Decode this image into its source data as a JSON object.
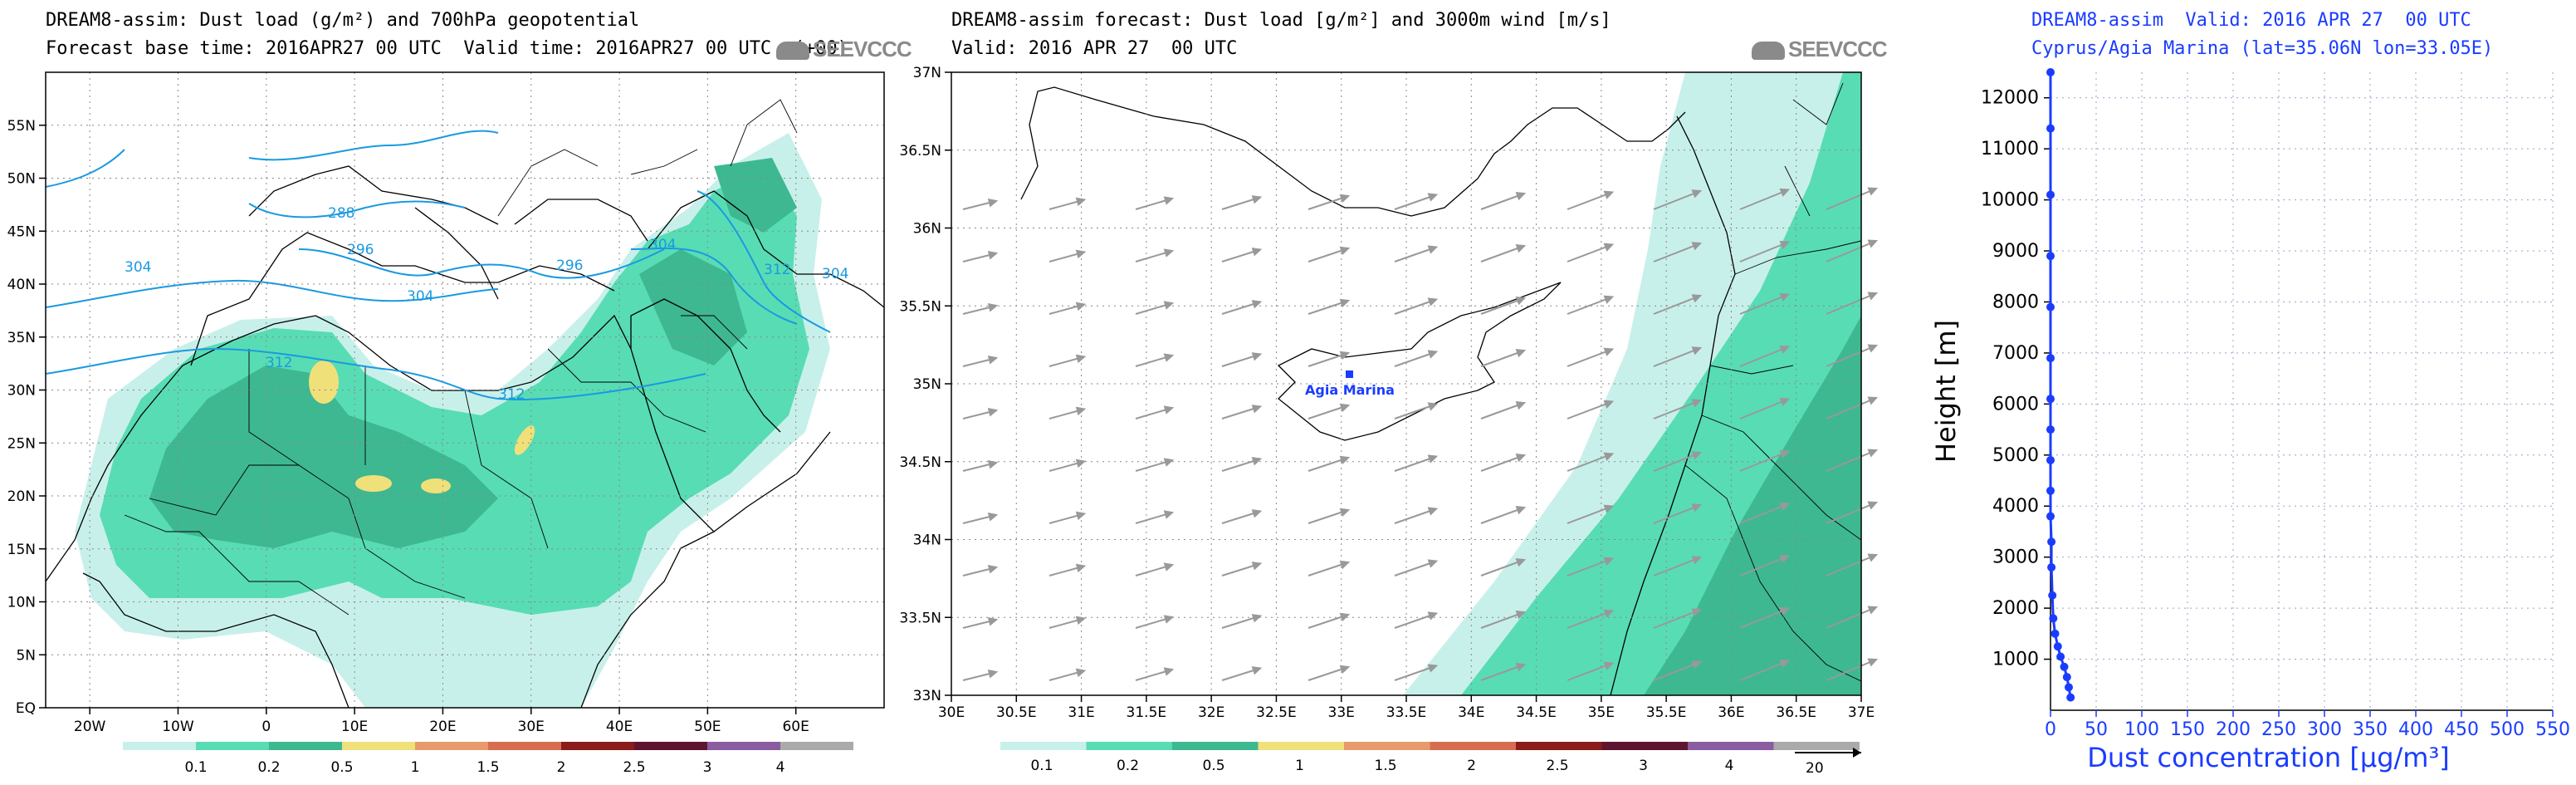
{
  "colors": {
    "c0": "#c8f0ea",
    "c1": "#58dcb4",
    "c2": "#3eb890",
    "c3": "#f0e07a",
    "c4": "#e89a6a",
    "c5": "#d76d50",
    "c6": "#8a1c1c",
    "c7": "#5e1530",
    "c8": "#8a5ca0",
    "c9": "#aaaaaa",
    "contour": "#1a9ae0",
    "profile": "#1a3cff"
  },
  "panel1": {
    "title1": "DREAM8-assim: Dust load (g/m²) and 700hPa geopotential",
    "title2": "Forecast base time: 2016APR27 00 UTC  Valid time: 2016APR27 00 UTC  (+00)",
    "logo": "SEEVCCC",
    "lon_ticks": [
      "20W",
      "10W",
      "0",
      "10E",
      "20E",
      "30E",
      "40E",
      "50E",
      "60E"
    ],
    "lat_ticks": [
      "EQ",
      "5N",
      "10N",
      "15N",
      "20N",
      "25N",
      "30N",
      "35N",
      "40N",
      "45N",
      "50N",
      "55N"
    ],
    "contour_labels": [
      "288",
      "296",
      "304",
      "304",
      "296",
      "304",
      "312",
      "312",
      "312",
      "304"
    ],
    "legend": [
      "0.1",
      "0.2",
      "0.5",
      "1",
      "1.5",
      "2",
      "2.5",
      "3",
      "4"
    ]
  },
  "panel2": {
    "title1": "DREAM8-assim forecast: Dust load [g/m²] and 3000m wind [m/s]",
    "title2": "Valid: 2016 APR 27  00 UTC",
    "logo": "SEEVCCC",
    "lon_ticks": [
      "30E",
      "30.5E",
      "31E",
      "31.5E",
      "32E",
      "32.5E",
      "33E",
      "33.5E",
      "34E",
      "34.5E",
      "35E",
      "35.5E",
      "36E",
      "36.5E",
      "37E"
    ],
    "lat_ticks": [
      "33N",
      "33.5N",
      "34N",
      "34.5N",
      "35N",
      "35.5N",
      "36N",
      "36.5N",
      "37N"
    ],
    "station": "Agia Marina",
    "legend": [
      "0.1",
      "0.2",
      "0.5",
      "1",
      "1.5",
      "2",
      "2.5",
      "3",
      "4"
    ],
    "wind_ref": "20"
  },
  "chart_data": {
    "type": "line",
    "title": "DREAM8-assim  Valid: 2016 APR 27  00 UTC",
    "subtitle": "Cyprus/Agia Marina (lat=35.06N lon=33.05E)",
    "xlabel": "Dust concentration [µg/m³]",
    "ylabel": "Height [m]",
    "xlim": [
      0,
      550
    ],
    "ylim": [
      0,
      12500
    ],
    "x_ticks": [
      "0",
      "50",
      "100",
      "150",
      "200",
      "250",
      "300",
      "350",
      "400",
      "450",
      "500",
      "550"
    ],
    "y_ticks": [
      "1000",
      "2000",
      "3000",
      "4000",
      "5000",
      "6000",
      "7000",
      "8000",
      "9000",
      "10000",
      "11000",
      "12000"
    ],
    "grid": true,
    "series": [
      {
        "x": [
          22,
          20,
          18,
          15,
          11,
          8,
          5,
          3,
          2,
          1,
          1,
          0,
          0,
          0,
          0,
          0,
          0,
          0,
          0,
          0,
          0,
          0
        ],
        "y": [
          250,
          450,
          650,
          850,
          1050,
          1250,
          1500,
          1800,
          2250,
          2800,
          3300,
          3800,
          4300,
          4900,
          5500,
          6100,
          6900,
          7900,
          8900,
          10100,
          11400,
          12500
        ]
      }
    ]
  }
}
